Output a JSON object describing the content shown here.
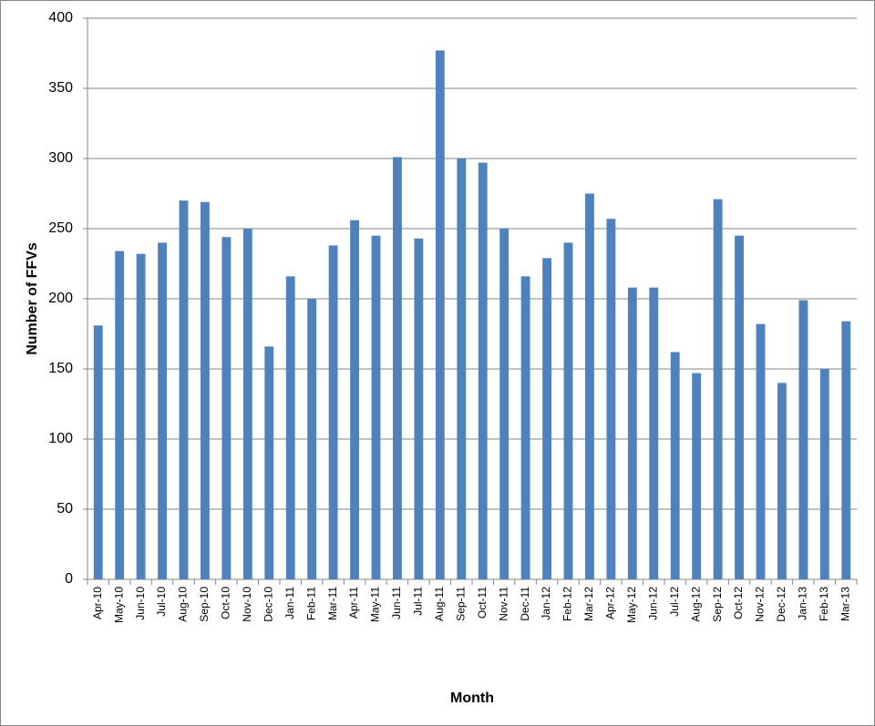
{
  "chart_data": {
    "type": "bar",
    "x_label": "Month",
    "y_label": "Number of FFVs",
    "categories": [
      "Apr-10",
      "May-10",
      "Jun-10",
      "Jul-10",
      "Aug-10",
      "Sep-10",
      "Oct-10",
      "Nov-10",
      "Dec-10",
      "Jan-11",
      "Feb-11",
      "Mar-11",
      "Apr-11",
      "May-11",
      "Jun-11",
      "Jul-11",
      "Aug-11",
      "Sep-11",
      "Oct-11",
      "Nov-11",
      "Dec-11",
      "Jan-12",
      "Feb-12",
      "Mar-12",
      "Apr-12",
      "May-12",
      "Jun-12",
      "Jul-12",
      "Aug-12",
      "Sep-12",
      "Oct-12",
      "Nov-12",
      "Dec-12",
      "Jan-13",
      "Feb-13",
      "Mar-13"
    ],
    "values": [
      181,
      234,
      232,
      240,
      270,
      269,
      244,
      250,
      166,
      216,
      200,
      238,
      256,
      245,
      301,
      243,
      377,
      300,
      297,
      250,
      216,
      229,
      240,
      275,
      257,
      208,
      208,
      162,
      147,
      271,
      245,
      182,
      140,
      199,
      150,
      184
    ],
    "color": "#4f81bd",
    "ylim": [
      0,
      400
    ],
    "yticks": [
      0,
      50,
      100,
      150,
      200,
      250,
      300,
      350,
      400
    ],
    "grid": true
  }
}
